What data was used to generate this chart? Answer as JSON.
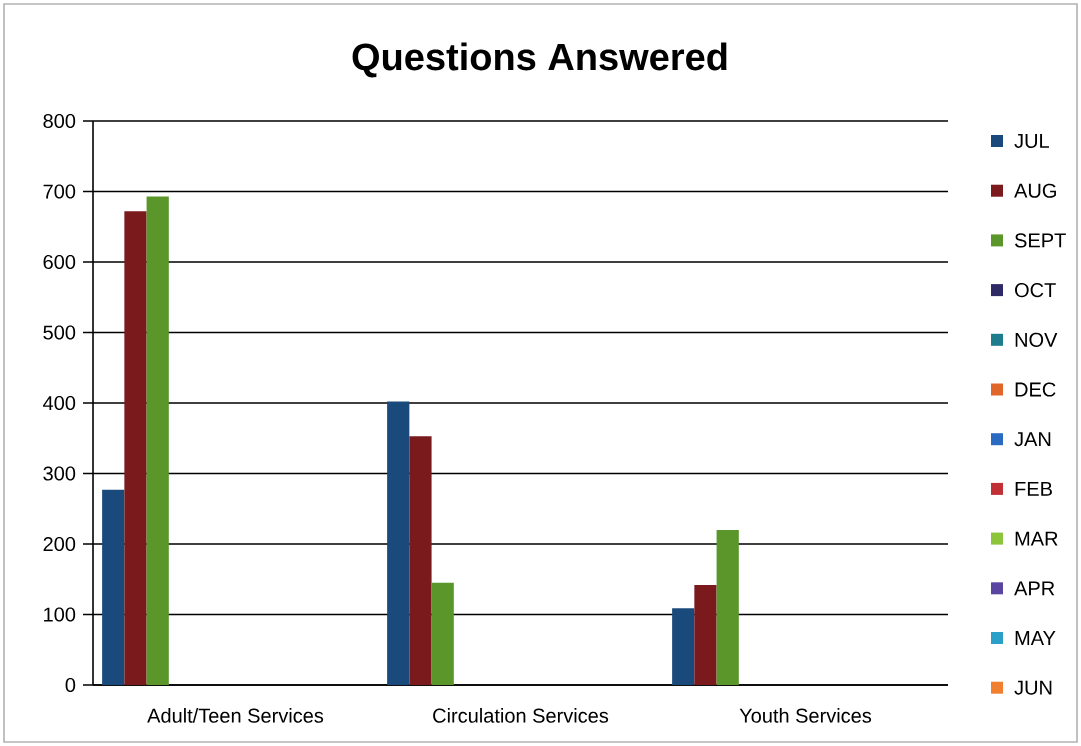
{
  "chart_data": {
    "type": "bar",
    "title": "Questions Answered",
    "categories": [
      "Adult/Teen Services",
      "Circulation Services",
      "Youth Services"
    ],
    "series": [
      {
        "name": "JUL",
        "color": "#1a4a7c",
        "values": [
          277,
          402,
          109
        ]
      },
      {
        "name": "AUG",
        "color": "#7a1a1c",
        "values": [
          672,
          353,
          142
        ]
      },
      {
        "name": "SEPT",
        "color": "#5a962a",
        "values": [
          693,
          145,
          220
        ]
      },
      {
        "name": "OCT",
        "color": "#2e2a66",
        "values": [
          null,
          null,
          null
        ]
      },
      {
        "name": "NOV",
        "color": "#1e7d8c",
        "values": [
          null,
          null,
          null
        ]
      },
      {
        "name": "DEC",
        "color": "#e0662a",
        "values": [
          null,
          null,
          null
        ]
      },
      {
        "name": "JAN",
        "color": "#2a6ac0",
        "values": [
          null,
          null,
          null
        ]
      },
      {
        "name": "FEB",
        "color": "#c03034",
        "values": [
          null,
          null,
          null
        ]
      },
      {
        "name": "MAR",
        "color": "#8cc43c",
        "values": [
          null,
          null,
          null
        ]
      },
      {
        "name": "APR",
        "color": "#5a46a0",
        "values": [
          null,
          null,
          null
        ]
      },
      {
        "name": "MAY",
        "color": "#2aa0c8",
        "values": [
          null,
          null,
          null
        ]
      },
      {
        "name": "JUN",
        "color": "#f08030",
        "values": [
          null,
          null,
          null
        ]
      }
    ],
    "ylim": [
      0,
      800
    ],
    "yticks": [
      0,
      100,
      200,
      300,
      400,
      500,
      600,
      700,
      800
    ],
    "grid": "y",
    "legend": "right"
  }
}
